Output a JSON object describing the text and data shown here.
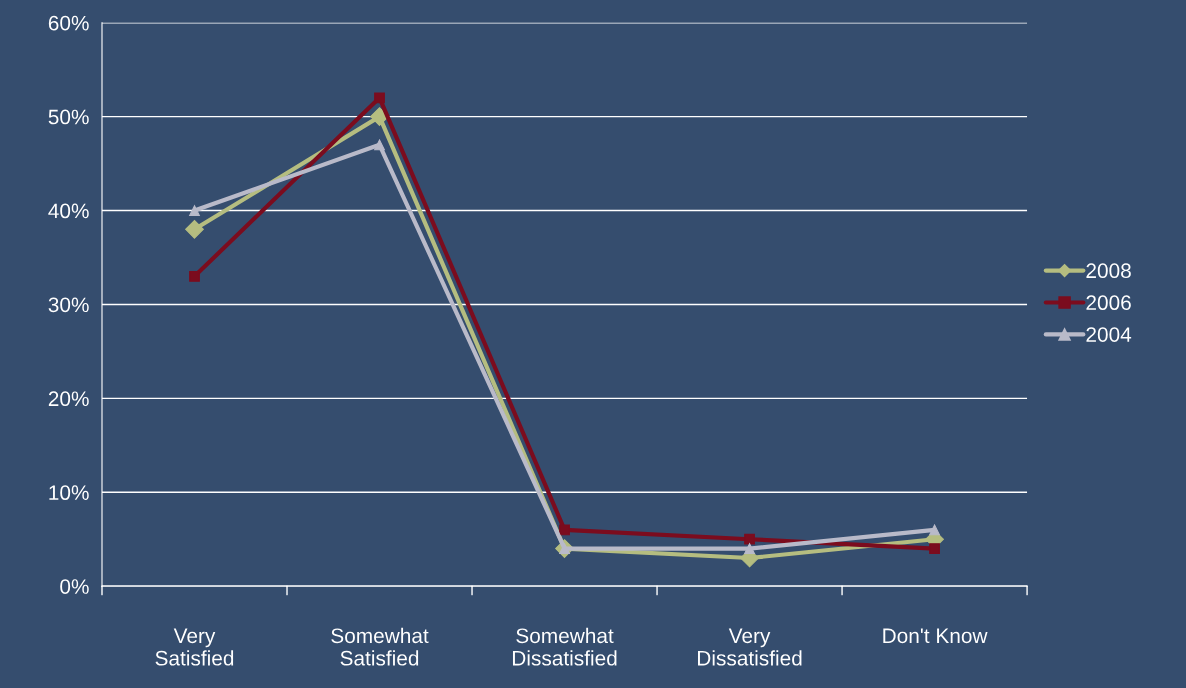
{
  "chart_data": {
    "type": "line",
    "categories": [
      "Very\nSatisfied",
      "Somewhat\nSatisfied",
      "Somewhat\nDissatisfied",
      "Very\nDissatisfied",
      "Don't Know"
    ],
    "series": [
      {
        "name": "2008",
        "color": "#b5bd80",
        "marker": "diamond",
        "values": [
          38,
          50,
          4,
          3,
          5
        ]
      },
      {
        "name": "2006",
        "color": "#7b0c1e",
        "marker": "square",
        "values": [
          33,
          52,
          6,
          5,
          4
        ]
      },
      {
        "name": "2004",
        "color": "#b9bac9",
        "marker": "triangle",
        "values": [
          40,
          47,
          4,
          4,
          6
        ]
      }
    ],
    "ylim": [
      0,
      60
    ],
    "yticks": [
      {
        "value": 0,
        "label": "0%"
      },
      {
        "value": 10,
        "label": "10%"
      },
      {
        "value": 20,
        "label": "20%"
      },
      {
        "value": 30,
        "label": "30%"
      },
      {
        "value": 40,
        "label": "40%"
      },
      {
        "value": 50,
        "label": "50%"
      },
      {
        "value": 60,
        "label": "60%"
      }
    ],
    "grid": "y",
    "legend": "right",
    "line_style": "solid"
  }
}
